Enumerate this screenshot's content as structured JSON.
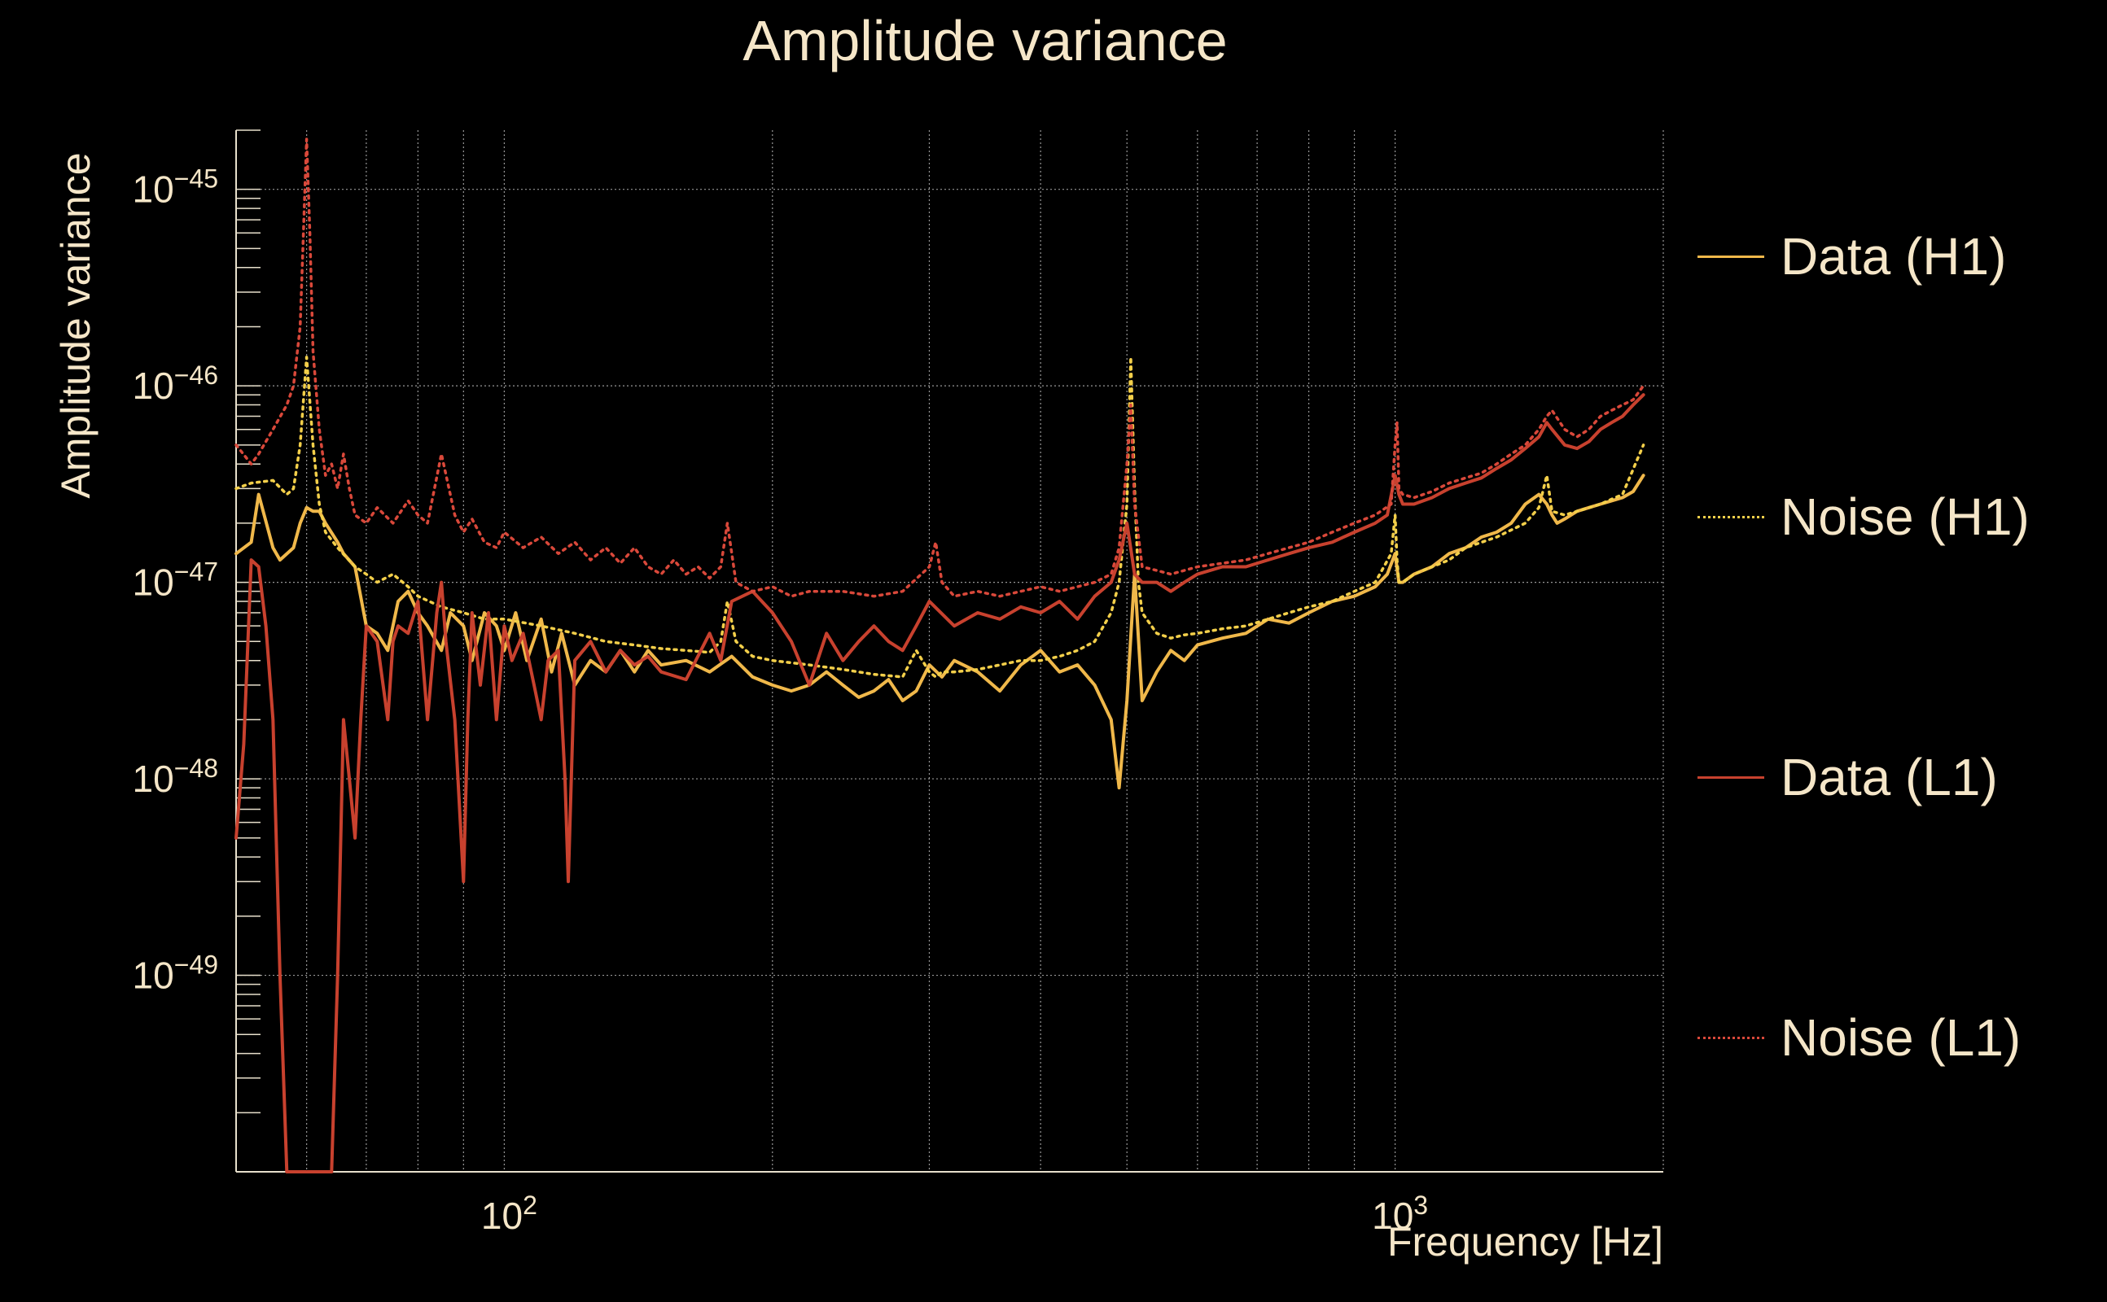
{
  "chart_data": {
    "type": "line",
    "title": "Amplitude variance",
    "xlabel": "Frequency [Hz]",
    "ylabel": "Amplitude variance",
    "xscale": "log",
    "yscale": "log",
    "xlim": [
      50,
      2000
    ],
    "ylim": [
      1e-50,
      2e-45
    ],
    "grid": true,
    "legend_position": "right",
    "x_tick_labels": [
      {
        "value": 100,
        "base": "10",
        "exp": "2"
      },
      {
        "value": 1000,
        "base": "10",
        "exp": "3"
      }
    ],
    "y_tick_labels": [
      {
        "value": 1e-45,
        "base": "10",
        "exp": "−45"
      },
      {
        "value": 1e-46,
        "base": "10",
        "exp": "−46"
      },
      {
        "value": 1e-47,
        "base": "10",
        "exp": "−47"
      },
      {
        "value": 1e-48,
        "base": "10",
        "exp": "−48"
      },
      {
        "value": 1e-49,
        "base": "10",
        "exp": "−49"
      }
    ],
    "series": [
      {
        "name": "Data (H1)",
        "color": "#f0b84a",
        "style": "solid",
        "x": [
          50,
          52,
          53,
          55,
          56,
          58,
          59,
          60,
          61,
          62,
          63,
          65,
          66,
          68,
          70,
          72,
          74,
          76,
          78,
          80,
          82,
          85,
          87,
          90,
          92,
          95,
          98,
          100,
          103,
          106,
          110,
          113,
          116,
          120,
          125,
          130,
          135,
          140,
          145,
          150,
          160,
          170,
          180,
          190,
          200,
          210,
          220,
          230,
          240,
          250,
          260,
          270,
          280,
          290,
          300,
          310,
          320,
          340,
          360,
          380,
          400,
          420,
          440,
          460,
          480,
          490,
          500,
          510,
          520,
          540,
          560,
          580,
          600,
          640,
          680,
          720,
          760,
          800,
          850,
          900,
          950,
          980,
          1000,
          1010,
          1020,
          1050,
          1100,
          1150,
          1200,
          1250,
          1300,
          1350,
          1400,
          1450,
          1480,
          1500,
          1520,
          1550,
          1600,
          1650,
          1700,
          1750,
          1800,
          1850,
          1900
        ],
        "y": [
          1.4e-47,
          1.6e-47,
          2.8e-47,
          1.5e-47,
          1.3e-47,
          1.5e-47,
          2e-47,
          2.4e-47,
          2.3e-47,
          2.3e-47,
          2e-47,
          1.6e-47,
          1.4e-47,
          1.2e-47,
          6e-48,
          5.5e-48,
          4.5e-48,
          8e-48,
          9e-48,
          7e-48,
          6e-48,
          4.5e-48,
          7e-48,
          6e-48,
          4e-48,
          7e-48,
          6e-48,
          4.5e-48,
          7e-48,
          4e-48,
          6.5e-48,
          3.5e-48,
          5.5e-48,
          3e-48,
          4e-48,
          3.5e-48,
          4.5e-48,
          3.5e-48,
          4.5e-48,
          3.8e-48,
          4e-48,
          3.5e-48,
          4.2e-48,
          3.3e-48,
          3e-48,
          2.8e-48,
          3e-48,
          3.5e-48,
          3e-48,
          2.6e-48,
          2.8e-48,
          3.2e-48,
          2.5e-48,
          2.8e-48,
          3.8e-48,
          3.3e-48,
          4e-48,
          3.5e-48,
          2.8e-48,
          3.8e-48,
          4.5e-48,
          3.5e-48,
          3.8e-48,
          3e-48,
          2e-48,
          9e-49,
          2.5e-48,
          1.1e-47,
          2.5e-48,
          3.5e-48,
          4.5e-48,
          4e-48,
          4.8e-48,
          5.2e-48,
          5.5e-48,
          6.5e-48,
          6.2e-48,
          7e-48,
          8e-48,
          8.5e-48,
          9.5e-48,
          1.1e-47,
          1.4e-47,
          1e-47,
          1e-47,
          1.1e-47,
          1.2e-47,
          1.4e-47,
          1.5e-47,
          1.7e-47,
          1.8e-47,
          2e-47,
          2.5e-47,
          2.8e-47,
          2.5e-47,
          2.2e-47,
          2e-47,
          2.1e-47,
          2.3e-47,
          2.4e-47,
          2.5e-47,
          2.6e-47,
          2.7e-47,
          2.9e-47,
          3.5e-47
        ]
      },
      {
        "name": "Noise (H1)",
        "color": "#f3cf4a",
        "style": "dotted",
        "x": [
          50,
          52,
          55,
          57,
          58,
          59,
          60,
          61,
          62,
          63,
          65,
          68,
          70,
          72,
          75,
          78,
          80,
          85,
          90,
          95,
          100,
          110,
          120,
          130,
          140,
          150,
          160,
          170,
          175,
          178,
          182,
          190,
          200,
          220,
          240,
          260,
          280,
          290,
          300,
          305,
          310,
          320,
          340,
          360,
          380,
          400,
          420,
          440,
          460,
          480,
          490,
          500,
          505,
          510,
          515,
          520,
          540,
          560,
          580,
          600,
          640,
          680,
          720,
          760,
          800,
          850,
          900,
          950,
          990,
          1000,
          1005,
          1010,
          1020,
          1050,
          1100,
          1150,
          1200,
          1300,
          1400,
          1450,
          1480,
          1500,
          1550,
          1600,
          1700,
          1800,
          1900
        ],
        "y": [
          3e-47,
          3.2e-47,
          3.3e-47,
          2.8e-47,
          3e-47,
          5e-47,
          1.4e-46,
          5e-47,
          2.5e-47,
          1.8e-47,
          1.5e-47,
          1.2e-47,
          1.1e-47,
          1e-47,
          1.1e-47,
          9.5e-48,
          8.5e-48,
          7.5e-48,
          7e-48,
          6.5e-48,
          6.5e-48,
          6e-48,
          5.5e-48,
          5e-48,
          4.8e-48,
          4.6e-48,
          4.5e-48,
          4.4e-48,
          5e-48,
          8e-48,
          5e-48,
          4.2e-48,
          4e-48,
          3.8e-48,
          3.6e-48,
          3.4e-48,
          3.3e-48,
          4.5e-48,
          3.5e-48,
          3.3e-48,
          3.5e-48,
          3.5e-48,
          3.6e-48,
          3.8e-48,
          4e-48,
          4e-48,
          4.2e-48,
          4.5e-48,
          5e-48,
          7e-48,
          1e-47,
          2.5e-47,
          1.4e-46,
          3e-47,
          1e-47,
          7e-48,
          5.5e-48,
          5.2e-48,
          5.4e-48,
          5.5e-48,
          5.8e-48,
          6e-48,
          6.5e-48,
          7e-48,
          7.5e-48,
          8e-48,
          9e-48,
          1e-47,
          1.4e-47,
          2.2e-47,
          1.3e-47,
          1e-47,
          1e-47,
          1.1e-47,
          1.2e-47,
          1.3e-47,
          1.5e-47,
          1.7e-47,
          2e-47,
          2.4e-47,
          3.5e-47,
          2.3e-47,
          2.2e-47,
          2.3e-47,
          2.5e-47,
          2.8e-47,
          5e-47
        ]
      },
      {
        "name": "Data (L1)",
        "color": "#c8412e",
        "style": "solid",
        "x": [
          50,
          51,
          52,
          53,
          54,
          55,
          56,
          57,
          58,
          59,
          60,
          61,
          62,
          63,
          64,
          65,
          66,
          67,
          68,
          69,
          70,
          72,
          74,
          75,
          76,
          78,
          80,
          82,
          84,
          85,
          86,
          88,
          90,
          91,
          92,
          94,
          96,
          98,
          100,
          102,
          105,
          108,
          110,
          112,
          115,
          117,
          118,
          120,
          125,
          130,
          135,
          140,
          145,
          150,
          160,
          170,
          175,
          180,
          190,
          200,
          210,
          220,
          230,
          240,
          250,
          260,
          270,
          280,
          290,
          300,
          320,
          340,
          360,
          380,
          400,
          420,
          440,
          460,
          480,
          490,
          500,
          510,
          520,
          540,
          560,
          580,
          600,
          640,
          680,
          720,
          760,
          800,
          850,
          900,
          950,
          980,
          1000,
          1010,
          1020,
          1050,
          1100,
          1150,
          1200,
          1250,
          1300,
          1350,
          1400,
          1450,
          1480,
          1500,
          1550,
          1600,
          1650,
          1700,
          1750,
          1800,
          1850,
          1900
        ],
        "y": [
          5e-49,
          1.5e-48,
          1.3e-47,
          1.2e-47,
          6e-48,
          2e-48,
          1e-49,
          1e-50,
          1e-50,
          1e-50,
          1e-50,
          1e-50,
          1e-50,
          1e-50,
          1e-50,
          1e-49,
          2e-48,
          1e-48,
          5e-49,
          2e-48,
          6e-48,
          5e-48,
          2e-48,
          5e-48,
          6e-48,
          5.5e-48,
          8e-48,
          2e-48,
          7e-48,
          1e-47,
          5e-48,
          2e-48,
          3e-49,
          2e-48,
          7e-48,
          3e-48,
          7e-48,
          2e-48,
          6e-48,
          4e-48,
          5.5e-48,
          3e-48,
          2e-48,
          4e-48,
          4.5e-48,
          1e-48,
          3e-49,
          4e-48,
          5e-48,
          3.5e-48,
          4.5e-48,
          3.8e-48,
          4.2e-48,
          3.5e-48,
          3.2e-48,
          5.5e-48,
          4e-48,
          8e-48,
          9e-48,
          7e-48,
          5e-48,
          3e-48,
          5.5e-48,
          4e-48,
          5e-48,
          6e-48,
          5e-48,
          4.5e-48,
          6e-48,
          8e-48,
          6e-48,
          7e-48,
          6.5e-48,
          7.5e-48,
          7e-48,
          8e-48,
          6.5e-48,
          8.5e-48,
          1e-47,
          1.3e-47,
          2e-47,
          1.1e-47,
          1e-47,
          1e-47,
          9e-48,
          1e-47,
          1.1e-47,
          1.2e-47,
          1.2e-47,
          1.3e-47,
          1.4e-47,
          1.5e-47,
          1.6e-47,
          1.8e-47,
          2e-47,
          2.2e-47,
          3.5e-47,
          2.8e-47,
          2.5e-47,
          2.5e-47,
          2.7e-47,
          3e-47,
          3.2e-47,
          3.4e-47,
          3.8e-47,
          4.2e-47,
          4.8e-47,
          5.5e-47,
          6.5e-47,
          6e-47,
          5e-47,
          4.8e-47,
          5.2e-47,
          6e-47,
          6.5e-47,
          7e-47,
          8e-47,
          9e-47
        ]
      },
      {
        "name": "Noise (L1)",
        "color": "#d9483a",
        "style": "dotted",
        "x": [
          50,
          52,
          53,
          55,
          57,
          58,
          59,
          59.5,
          60,
          60.5,
          61,
          62,
          63,
          64,
          65,
          66,
          67,
          68,
          70,
          72,
          75,
          78,
          80,
          82,
          85,
          88,
          90,
          92,
          95,
          98,
          100,
          105,
          110,
          115,
          120,
          125,
          130,
          135,
          140,
          145,
          150,
          155,
          160,
          165,
          170,
          175,
          178,
          182,
          190,
          200,
          210,
          220,
          240,
          260,
          280,
          300,
          305,
          310,
          320,
          340,
          360,
          380,
          400,
          420,
          440,
          460,
          480,
          490,
          500,
          505,
          510,
          520,
          540,
          560,
          580,
          600,
          640,
          680,
          720,
          760,
          800,
          850,
          900,
          950,
          990,
          1000,
          1005,
          1010,
          1020,
          1050,
          1100,
          1150,
          1200,
          1250,
          1300,
          1350,
          1400,
          1450,
          1480,
          1500,
          1550,
          1600,
          1650,
          1700,
          1750,
          1800,
          1850,
          1900
        ],
        "y": [
          5e-47,
          4e-47,
          4.5e-47,
          6e-47,
          8e-47,
          1e-46,
          2e-46,
          6e-46,
          1.8e-45,
          6e-46,
          1.5e-46,
          6e-47,
          3.5e-47,
          4e-47,
          3e-47,
          4.5e-47,
          3e-47,
          2.2e-47,
          2e-47,
          2.4e-47,
          2e-47,
          2.6e-47,
          2.2e-47,
          2e-47,
          4.5e-47,
          2.2e-47,
          1.8e-47,
          2.1e-47,
          1.6e-47,
          1.5e-47,
          1.8e-47,
          1.5e-47,
          1.7e-47,
          1.4e-47,
          1.6e-47,
          1.3e-47,
          1.5e-47,
          1.25e-47,
          1.5e-47,
          1.2e-47,
          1.1e-47,
          1.3e-47,
          1.1e-47,
          1.2e-47,
          1.05e-47,
          1.2e-47,
          2e-47,
          1e-47,
          9e-48,
          9.5e-48,
          8.5e-48,
          9e-48,
          9e-48,
          8.5e-48,
          9e-48,
          1.2e-47,
          1.6e-47,
          1e-47,
          8.5e-48,
          9e-48,
          8.5e-48,
          9e-48,
          9.5e-48,
          9e-48,
          9.5e-48,
          1e-47,
          1.1e-47,
          1.5e-47,
          4e-47,
          8e-47,
          2.5e-47,
          1.2e-47,
          1.15e-47,
          1.1e-47,
          1.15e-47,
          1.2e-47,
          1.25e-47,
          1.3e-47,
          1.4e-47,
          1.5e-47,
          1.6e-47,
          1.8e-47,
          2e-47,
          2.2e-47,
          2.5e-47,
          5e-47,
          6.5e-47,
          3e-47,
          2.8e-47,
          2.7e-47,
          2.9e-47,
          3.2e-47,
          3.4e-47,
          3.6e-47,
          4e-47,
          4.5e-47,
          5e-47,
          6e-47,
          7e-47,
          7.5e-47,
          6e-47,
          5.5e-47,
          6e-47,
          7e-47,
          7.5e-47,
          8e-47,
          8.5e-47,
          1e-46
        ]
      }
    ]
  }
}
